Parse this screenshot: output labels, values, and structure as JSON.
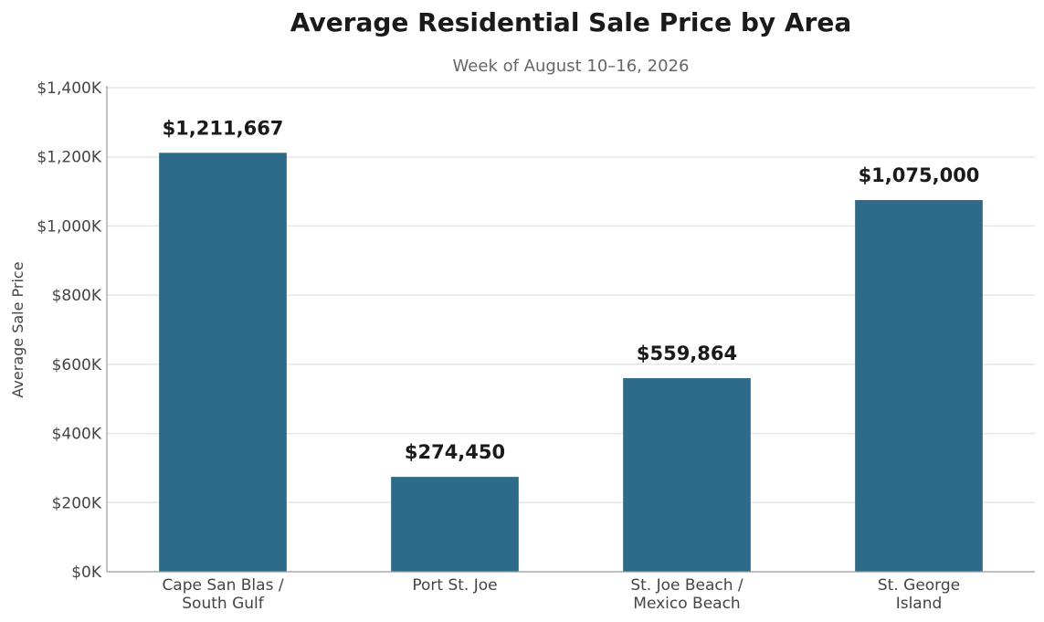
{
  "chart_data": {
    "type": "bar",
    "title": "Average Residential Sale Price by Area",
    "subtitle": "Week of August 10–16, 2026",
    "xlabel": "",
    "ylabel": "Average Sale Price",
    "categories": [
      [
        "Cape San Blas /",
        "South Gulf"
      ],
      [
        "Port St. Joe"
      ],
      [
        "St. Joe Beach /",
        "Mexico Beach"
      ],
      [
        "St. George",
        "Island"
      ]
    ],
    "values": [
      1211667,
      274450,
      559864,
      1075000
    ],
    "value_labels": [
      "$1,211,667",
      "$274,450",
      "$559,864",
      "$1,075,000"
    ],
    "ylim": [
      0,
      1400000
    ],
    "yticks": [
      0,
      200000,
      400000,
      600000,
      800000,
      1000000,
      1200000,
      1400000
    ],
    "ytick_labels": [
      "$0K",
      "$200K",
      "$400K",
      "$600K",
      "$800K",
      "$1,000K",
      "$1,200K",
      "$1,400K"
    ],
    "grid": true,
    "legend": "none",
    "colors": {
      "bar": "#2e6b8a",
      "grid": "#e6e6e6",
      "axis": "#999999",
      "text": "#1a1a1a",
      "muted": "#666666"
    }
  }
}
